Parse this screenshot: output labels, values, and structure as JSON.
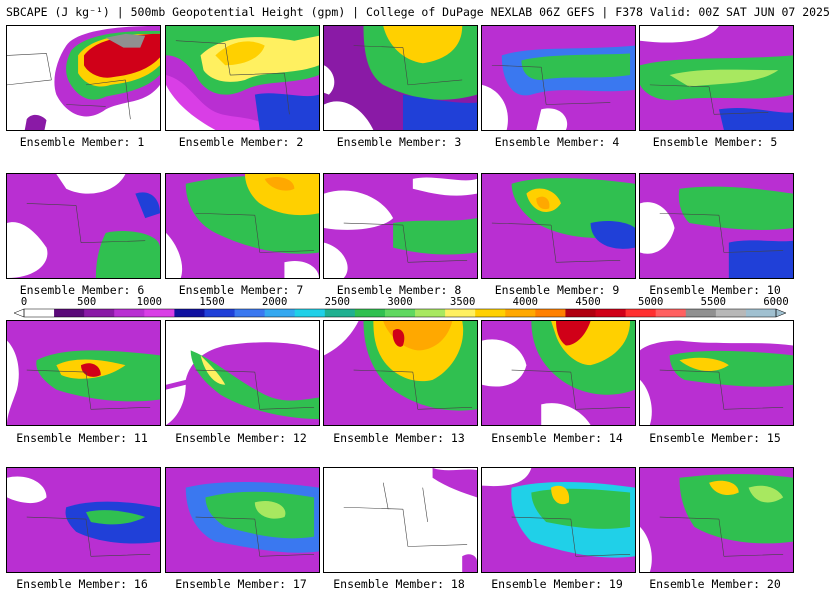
{
  "header": {
    "title": "SBCAPE (J kg⁻¹) | 500mb Geopotential Height (gpm) | College of DuPage NEXLAB 06Z GEFS | F378 Valid: 00Z SAT JUN 07 2025"
  },
  "colorbar": {
    "ticks": [
      "0",
      "500",
      "1000",
      "1500",
      "2000",
      "2500",
      "3000",
      "3500",
      "4000",
      "4500",
      "5000",
      "5500",
      "6000"
    ],
    "colors": [
      "#ffffff",
      "#5a0a78",
      "#8a1aa6",
      "#b92fd2",
      "#d93ee6",
      "#1010a0",
      "#2040d8",
      "#3a78f0",
      "#34a8f0",
      "#20d0e8",
      "#20b090",
      "#30c050",
      "#60d860",
      "#a8e860",
      "#fff060",
      "#ffd000",
      "#ffa800",
      "#ff8000",
      "#b00010",
      "#d00018",
      "#ff3030",
      "#ff6060",
      "#909090",
      "#b8b8b8",
      "#a0c0d0"
    ]
  },
  "members": [
    {
      "label": "Ensemble Member: 1"
    },
    {
      "label": "Ensemble Member: 2"
    },
    {
      "label": "Ensemble Member: 3"
    },
    {
      "label": "Ensemble Member: 4"
    },
    {
      "label": "Ensemble Member: 5"
    },
    {
      "label": "Ensemble Member: 6"
    },
    {
      "label": "Ensemble Member: 7"
    },
    {
      "label": "Ensemble Member: 8"
    },
    {
      "label": "Ensemble Member: 9"
    },
    {
      "label": "Ensemble Member: 10"
    },
    {
      "label": "Ensemble Member: 11"
    },
    {
      "label": "Ensemble Member: 12"
    },
    {
      "label": "Ensemble Member: 13"
    },
    {
      "label": "Ensemble Member: 14"
    },
    {
      "label": "Ensemble Member: 15"
    },
    {
      "label": "Ensemble Member: 16"
    },
    {
      "label": "Ensemble Member: 17"
    },
    {
      "label": "Ensemble Member: 18"
    },
    {
      "label": "Ensemble Member: 19"
    },
    {
      "label": "Ensemble Member: 20"
    }
  ]
}
